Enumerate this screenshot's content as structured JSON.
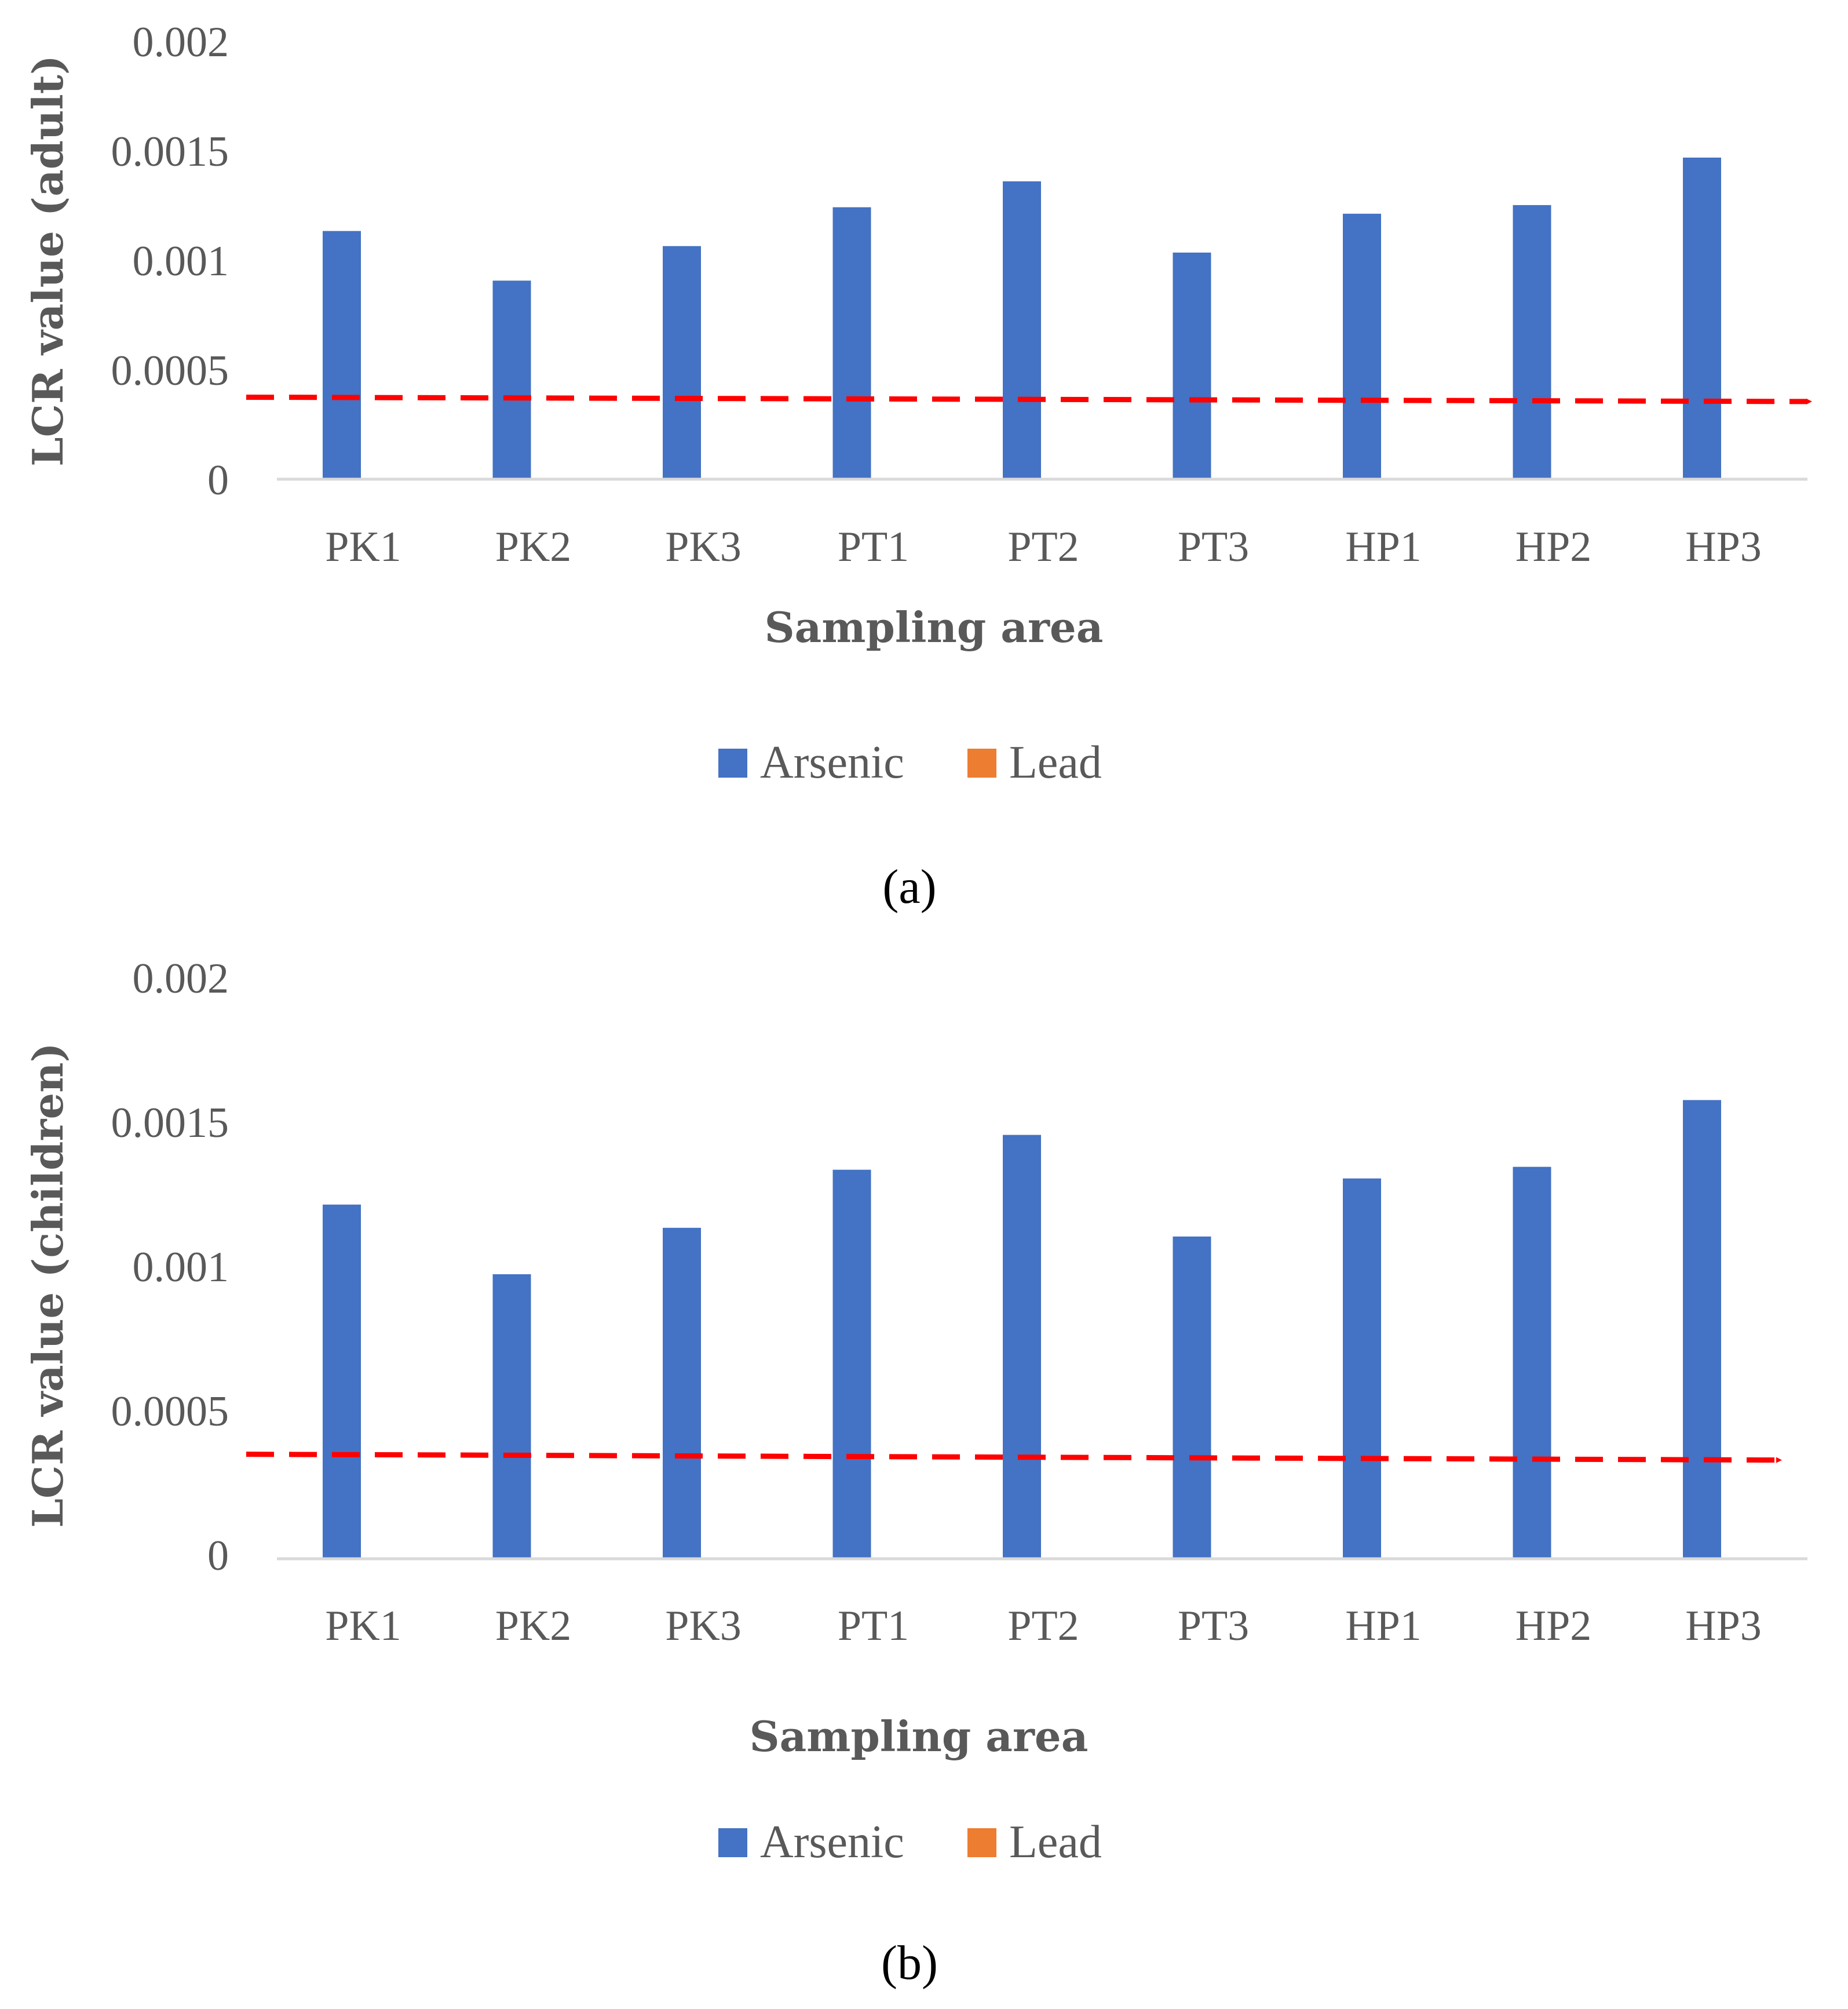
{
  "chart_data": [
    {
      "type": "bar",
      "panel_label": "(a)",
      "categories": [
        "PK1",
        "PK2",
        "PK3",
        "PT1",
        "PT2",
        "PT3",
        "HP1",
        "HP2",
        "HP3"
      ],
      "series": [
        {
          "name": "Arsenic",
          "color": "#4472C4",
          "values": [
            0.00115,
            0.00092,
            0.00108,
            0.00126,
            0.00138,
            0.00105,
            0.00123,
            0.00127,
            0.00149
          ]
        },
        {
          "name": "Lead",
          "color": "#ED7D31",
          "values": [
            0,
            0,
            0,
            0,
            0,
            0,
            0,
            0,
            0
          ]
        }
      ],
      "reference_line": {
        "start": 0.00038,
        "end": 0.00036,
        "color": "#FF0000",
        "style": "dashed-arrow"
      },
      "xlabel": "Sampling area",
      "ylabel": "LCR value (adult)",
      "ylim": [
        0,
        0.002
      ],
      "yticks": [
        "0",
        "0.0005",
        "0.001",
        "0.0015",
        "0.002"
      ],
      "legend": "bottom"
    },
    {
      "type": "bar",
      "panel_label": "(b)",
      "categories": [
        "PK1",
        "PK2",
        "PK3",
        "PT1",
        "PT2",
        "PT3",
        "HP1",
        "HP2",
        "HP3"
      ],
      "series": [
        {
          "name": "Arsenic",
          "color": "#4472C4",
          "values": [
            0.00122,
            0.00098,
            0.00114,
            0.00134,
            0.00146,
            0.00111,
            0.00131,
            0.00135,
            0.00158
          ]
        },
        {
          "name": "Lead",
          "color": "#ED7D31",
          "values": [
            0,
            0,
            0,
            0,
            0,
            0,
            0,
            0,
            0
          ]
        }
      ],
      "reference_line": {
        "start": 0.00036,
        "end": 0.00034,
        "color": "#FF0000",
        "style": "dashed-arrow"
      },
      "xlabel": "Sampling area",
      "ylabel": "LCR value (children)",
      "ylim": [
        0,
        0.002
      ],
      "yticks": [
        "0",
        "0.0005",
        "0.001",
        "0.0015",
        "0.002"
      ],
      "legend": "bottom"
    }
  ]
}
